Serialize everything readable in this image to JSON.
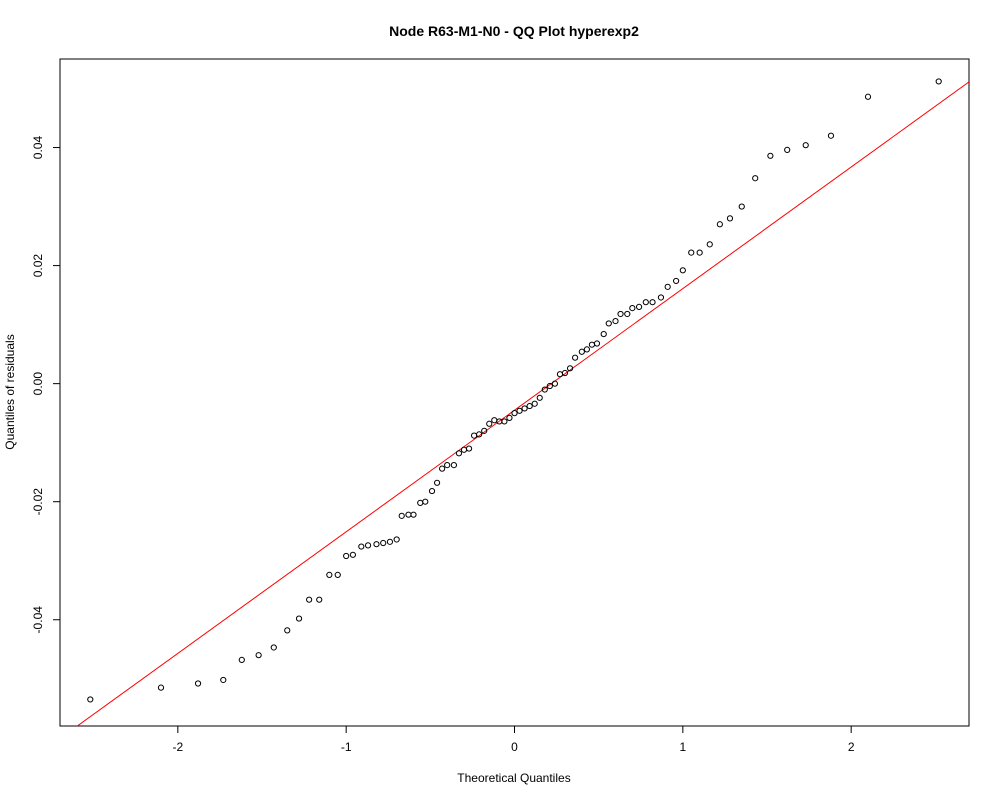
{
  "chart_data": {
    "type": "scatter",
    "title": "Node R63-M1-N0 - QQ Plot hyperexp2",
    "xlabel": "Theoretical Quantiles",
    "ylabel": "Quantiles of residuals",
    "xlim": [
      -2.7,
      2.7
    ],
    "ylim": [
      -0.058,
      0.055
    ],
    "x_ticks": [
      -2,
      -1,
      0,
      1,
      2
    ],
    "x_tick_labels": [
      "-2",
      "-1",
      "0",
      "1",
      "2"
    ],
    "y_ticks": [
      -0.04,
      -0.02,
      0.0,
      0.02,
      0.04
    ],
    "y_tick_labels": [
      "-0.04",
      "-0.02",
      "0.00",
      "0.02",
      "0.04"
    ],
    "grid": false,
    "legend": "none",
    "point_color": "#000000",
    "line_color": "#ff0000",
    "reference_line": {
      "slope": 0.0206,
      "intercept": -0.0045
    },
    "points": [
      [
        -2.52,
        -0.0535
      ],
      [
        -2.1,
        -0.0515
      ],
      [
        -1.88,
        -0.0508
      ],
      [
        -1.73,
        -0.0502
      ],
      [
        -1.62,
        -0.0468
      ],
      [
        -1.52,
        -0.046
      ],
      [
        -1.43,
        -0.0447
      ],
      [
        -1.35,
        -0.0418
      ],
      [
        -1.28,
        -0.0398
      ],
      [
        -1.22,
        -0.0366
      ],
      [
        -1.16,
        -0.0366
      ],
      [
        -1.1,
        -0.0324
      ],
      [
        -1.05,
        -0.0324
      ],
      [
        -1.0,
        -0.0292
      ],
      [
        -0.96,
        -0.029
      ],
      [
        -0.91,
        -0.0276
      ],
      [
        -0.87,
        -0.0274
      ],
      [
        -0.82,
        -0.0272
      ],
      [
        -0.78,
        -0.027
      ],
      [
        -0.74,
        -0.0268
      ],
      [
        -0.7,
        -0.0264
      ],
      [
        -0.67,
        -0.0224
      ],
      [
        -0.63,
        -0.0222
      ],
      [
        -0.6,
        -0.0222
      ],
      [
        -0.56,
        -0.0202
      ],
      [
        -0.53,
        -0.02
      ],
      [
        -0.49,
        -0.0182
      ],
      [
        -0.46,
        -0.0168
      ],
      [
        -0.43,
        -0.0144
      ],
      [
        -0.4,
        -0.0138
      ],
      [
        -0.36,
        -0.0138
      ],
      [
        -0.33,
        -0.0118
      ],
      [
        -0.3,
        -0.0112
      ],
      [
        -0.27,
        -0.011
      ],
      [
        -0.24,
        -0.0088
      ],
      [
        -0.21,
        -0.0086
      ],
      [
        -0.18,
        -0.008
      ],
      [
        -0.15,
        -0.0068
      ],
      [
        -0.12,
        -0.0062
      ],
      [
        -0.09,
        -0.0064
      ],
      [
        -0.06,
        -0.0064
      ],
      [
        -0.03,
        -0.0058
      ],
      [
        0.0,
        -0.005
      ],
      [
        0.03,
        -0.0046
      ],
      [
        0.06,
        -0.0042
      ],
      [
        0.09,
        -0.0038
      ],
      [
        0.12,
        -0.0034
      ],
      [
        0.15,
        -0.0024
      ],
      [
        0.18,
        -0.001
      ],
      [
        0.21,
        -0.0004
      ],
      [
        0.24,
        0.0
      ],
      [
        0.27,
        0.0016
      ],
      [
        0.3,
        0.0018
      ],
      [
        0.33,
        0.0026
      ],
      [
        0.36,
        0.0044
      ],
      [
        0.4,
        0.0054
      ],
      [
        0.43,
        0.0058
      ],
      [
        0.46,
        0.0066
      ],
      [
        0.49,
        0.0068
      ],
      [
        0.53,
        0.0084
      ],
      [
        0.56,
        0.0102
      ],
      [
        0.6,
        0.0106
      ],
      [
        0.63,
        0.0118
      ],
      [
        0.67,
        0.0118
      ],
      [
        0.7,
        0.0128
      ],
      [
        0.74,
        0.013
      ],
      [
        0.78,
        0.0138
      ],
      [
        0.82,
        0.0138
      ],
      [
        0.87,
        0.0146
      ],
      [
        0.91,
        0.0164
      ],
      [
        0.96,
        0.0174
      ],
      [
        1.0,
        0.0192
      ],
      [
        1.05,
        0.0222
      ],
      [
        1.1,
        0.0222
      ],
      [
        1.16,
        0.0236
      ],
      [
        1.22,
        0.027
      ],
      [
        1.28,
        0.028
      ],
      [
        1.35,
        0.03
      ],
      [
        1.43,
        0.0348
      ],
      [
        1.52,
        0.0386
      ],
      [
        1.62,
        0.0396
      ],
      [
        1.73,
        0.0404
      ],
      [
        1.88,
        0.042
      ],
      [
        2.1,
        0.0486
      ],
      [
        2.52,
        0.0512
      ]
    ]
  }
}
